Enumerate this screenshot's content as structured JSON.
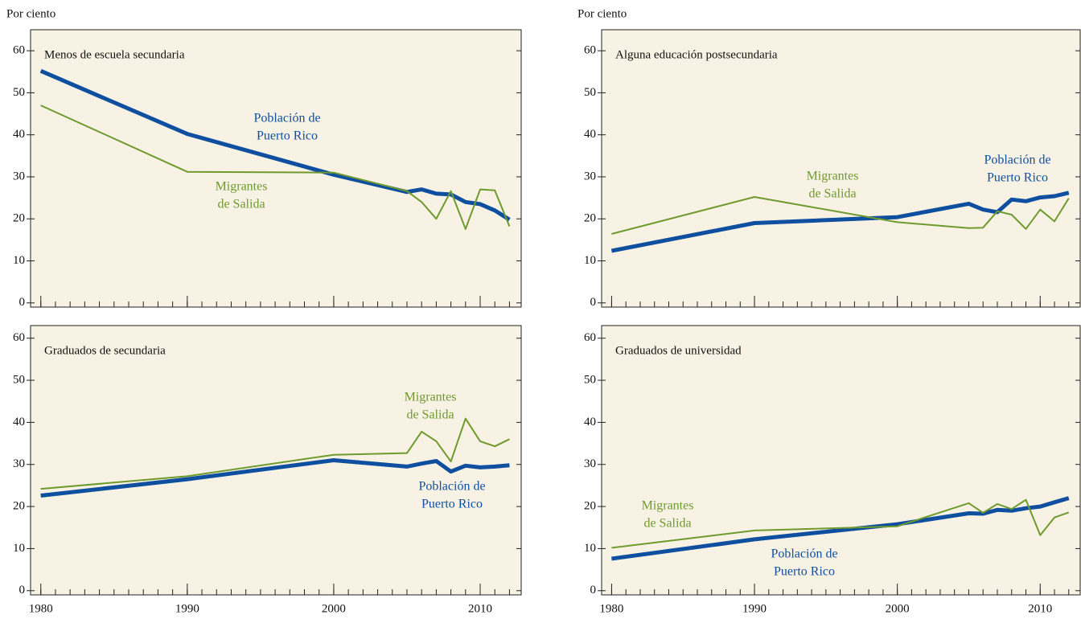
{
  "chart_data": [
    {
      "type": "line",
      "title": "Menos de escuela secundaria",
      "ylabel": "Por ciento",
      "x": [
        1980,
        1990,
        2000,
        2005,
        2006,
        2007,
        2008,
        2009,
        2010,
        2011,
        2012
      ],
      "series": [
        {
          "label_lines": [
            "Población de",
            "Puerto Rico"
          ],
          "color": "#0f4fa0",
          "values": [
            55.2,
            40.2,
            30.5,
            26.4,
            27.0,
            26.0,
            25.8,
            24.0,
            23.5,
            22.0,
            19.8
          ]
        },
        {
          "label_lines": [
            "Migrantes",
            "de Salida"
          ],
          "color": "#6e9a2e",
          "values": [
            47.0,
            31.2,
            31.0,
            26.6,
            24.0,
            20.0,
            26.6,
            17.6,
            27.0,
            26.8,
            18.2
          ]
        }
      ],
      "xlim": [
        1979.3,
        2012.8
      ],
      "xticks": [
        1980,
        1990,
        2000,
        2010
      ],
      "show_xtick_labels": false,
      "xminor": [
        1980,
        1981,
        1982,
        1983,
        1984,
        1985,
        1986,
        1987,
        1988,
        1989,
        1990,
        1991,
        1992,
        1993,
        1994,
        1995,
        1996,
        1997,
        1998,
        1999,
        2000,
        2001,
        2002,
        2003,
        2004,
        2005,
        2006,
        2007,
        2008,
        2009,
        2010,
        2011,
        2012
      ],
      "ylim": [
        -1,
        65
      ],
      "yticks": [
        0,
        10,
        20,
        30,
        40,
        50,
        60
      ]
    },
    {
      "type": "line",
      "title": "Alguna educación postsecundaria",
      "ylabel": "Por ciento",
      "x": [
        1980,
        1990,
        2000,
        2005,
        2006,
        2007,
        2008,
        2009,
        2010,
        2011,
        2012
      ],
      "series": [
        {
          "label_lines": [
            "Población de",
            "Puerto Rico"
          ],
          "color": "#0f4fa0",
          "values": [
            12.4,
            19.0,
            20.4,
            23.6,
            22.2,
            21.6,
            24.6,
            24.2,
            25.1,
            25.4,
            26.2
          ]
        },
        {
          "label_lines": [
            "Migrantes",
            "de Salida"
          ],
          "color": "#6e9a2e",
          "values": [
            16.4,
            25.2,
            19.2,
            17.8,
            17.9,
            21.8,
            21.0,
            17.6,
            22.2,
            19.4,
            24.9
          ]
        }
      ],
      "xlim": [
        1979.3,
        2012.8
      ],
      "xticks": [
        1980,
        1990,
        2000,
        2010
      ],
      "show_xtick_labels": false,
      "xminor": [
        1980,
        1981,
        1982,
        1983,
        1984,
        1985,
        1986,
        1987,
        1988,
        1989,
        1990,
        1991,
        1992,
        1993,
        1994,
        1995,
        1996,
        1997,
        1998,
        1999,
        2000,
        2001,
        2002,
        2003,
        2004,
        2005,
        2006,
        2007,
        2008,
        2009,
        2010,
        2011,
        2012
      ],
      "ylim": [
        -1,
        65
      ],
      "yticks": [
        0,
        10,
        20,
        30,
        40,
        50,
        60
      ]
    },
    {
      "type": "line",
      "title": "Graduados de secundaria",
      "x": [
        1980,
        1990,
        2000,
        2005,
        2006,
        2007,
        2008,
        2009,
        2010,
        2011,
        2012
      ],
      "series": [
        {
          "label_lines": [
            "Población de",
            "Puerto Rico"
          ],
          "color": "#0f4fa0",
          "values": [
            22.6,
            26.5,
            31.0,
            29.5,
            30.2,
            30.8,
            28.3,
            29.7,
            29.3,
            29.5,
            29.8
          ]
        },
        {
          "label_lines": [
            "Migrantes",
            "de Salida"
          ],
          "color": "#6e9a2e",
          "values": [
            24.2,
            27.2,
            32.3,
            32.7,
            37.8,
            35.5,
            30.7,
            40.9,
            35.5,
            34.3,
            36.0
          ]
        }
      ],
      "xlim": [
        1979.3,
        2012.8
      ],
      "xticks": [
        1980,
        1990,
        2000,
        2010
      ],
      "show_xtick_labels": true,
      "xminor": [
        1980,
        1981,
        1982,
        1983,
        1984,
        1985,
        1986,
        1987,
        1988,
        1989,
        1990,
        1991,
        1992,
        1993,
        1994,
        1995,
        1996,
        1997,
        1998,
        1999,
        2000,
        2001,
        2002,
        2003,
        2004,
        2005,
        2006,
        2007,
        2008,
        2009,
        2010,
        2011,
        2012
      ],
      "ylim": [
        -1,
        63
      ],
      "yticks": [
        0,
        10,
        20,
        30,
        40,
        50,
        60
      ]
    },
    {
      "type": "line",
      "title": "Graduados de universidad",
      "x": [
        1980,
        1990,
        2000,
        2005,
        2006,
        2007,
        2008,
        2009,
        2010,
        2011,
        2012
      ],
      "series": [
        {
          "label_lines": [
            "Población de",
            "Puerto Rico"
          ],
          "color": "#0f4fa0",
          "values": [
            7.6,
            12.2,
            15.8,
            18.4,
            18.3,
            19.2,
            19.0,
            19.6,
            20.0,
            21.0,
            22.0
          ]
        },
        {
          "label_lines": [
            "Migrantes",
            "de Salida"
          ],
          "color": "#6e9a2e",
          "values": [
            10.2,
            14.3,
            15.3,
            20.8,
            18.5,
            20.6,
            19.4,
            21.6,
            13.2,
            17.4,
            18.6
          ]
        }
      ],
      "xlim": [
        1979.3,
        2012.8
      ],
      "xticks": [
        1980,
        1990,
        2000,
        2010
      ],
      "show_xtick_labels": true,
      "xminor": [
        1980,
        1981,
        1982,
        1983,
        1984,
        1985,
        1986,
        1987,
        1988,
        1989,
        1990,
        1991,
        1992,
        1993,
        1994,
        1995,
        1996,
        1997,
        1998,
        1999,
        2000,
        2001,
        2002,
        2003,
        2004,
        2005,
        2006,
        2007,
        2008,
        2009,
        2010,
        2011,
        2012
      ],
      "ylim": [
        -1,
        63
      ],
      "yticks": [
        0,
        10,
        20,
        30,
        40,
        50,
        60
      ]
    }
  ]
}
